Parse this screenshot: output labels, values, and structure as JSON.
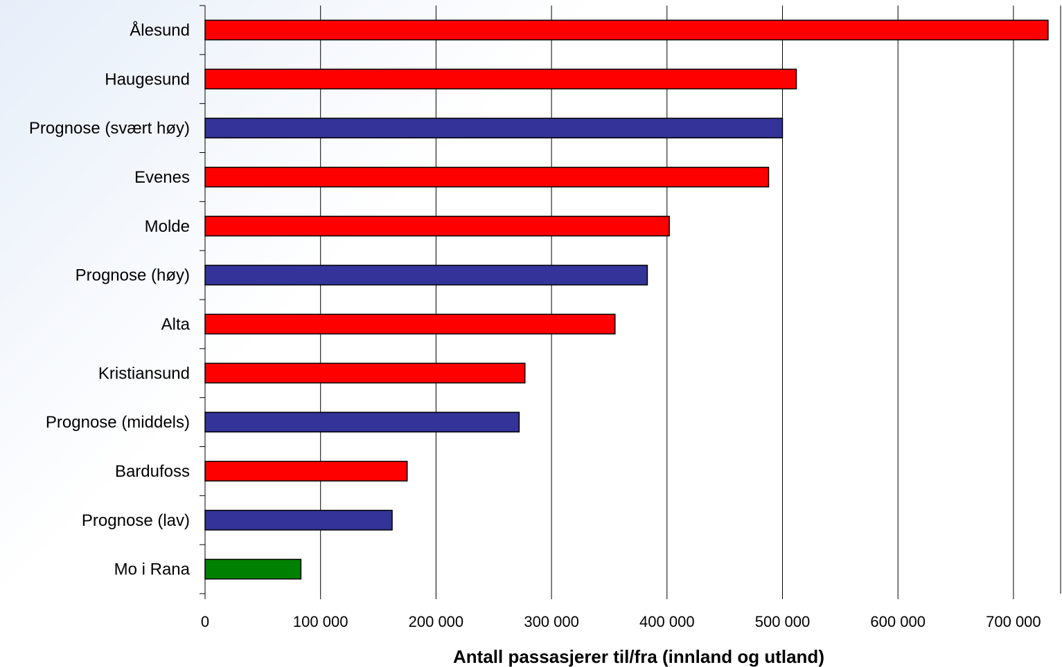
{
  "chart_data": {
    "type": "bar",
    "orientation": "horizontal",
    "categories": [
      "Ålesund",
      "Haugesund",
      "Prognose (svært høy)",
      "Evenes",
      "Molde",
      "Prognose (høy)",
      "Alta",
      "Kristiansund",
      "Prognose (middels)",
      "Bardufoss",
      "Prognose (lav)",
      "Mo i Rana"
    ],
    "values": [
      730000,
      512000,
      500000,
      488000,
      402000,
      383000,
      355000,
      277000,
      272000,
      175000,
      162000,
      83000
    ],
    "bar_colors": [
      "#ff0000",
      "#ff0000",
      "#333399",
      "#ff0000",
      "#ff0000",
      "#333399",
      "#ff0000",
      "#ff0000",
      "#333399",
      "#ff0000",
      "#333399",
      "#008000"
    ],
    "x_ticks": [
      "0",
      "100 000",
      "200 000",
      "300 000",
      "400 000",
      "500 000",
      "600 000",
      "700 000"
    ],
    "xlim": [
      0,
      740000
    ],
    "xlabel": "Antall passasjerer til/fra (innland og utland)",
    "ylabel": "",
    "title": "",
    "grid": true,
    "legend": false
  }
}
